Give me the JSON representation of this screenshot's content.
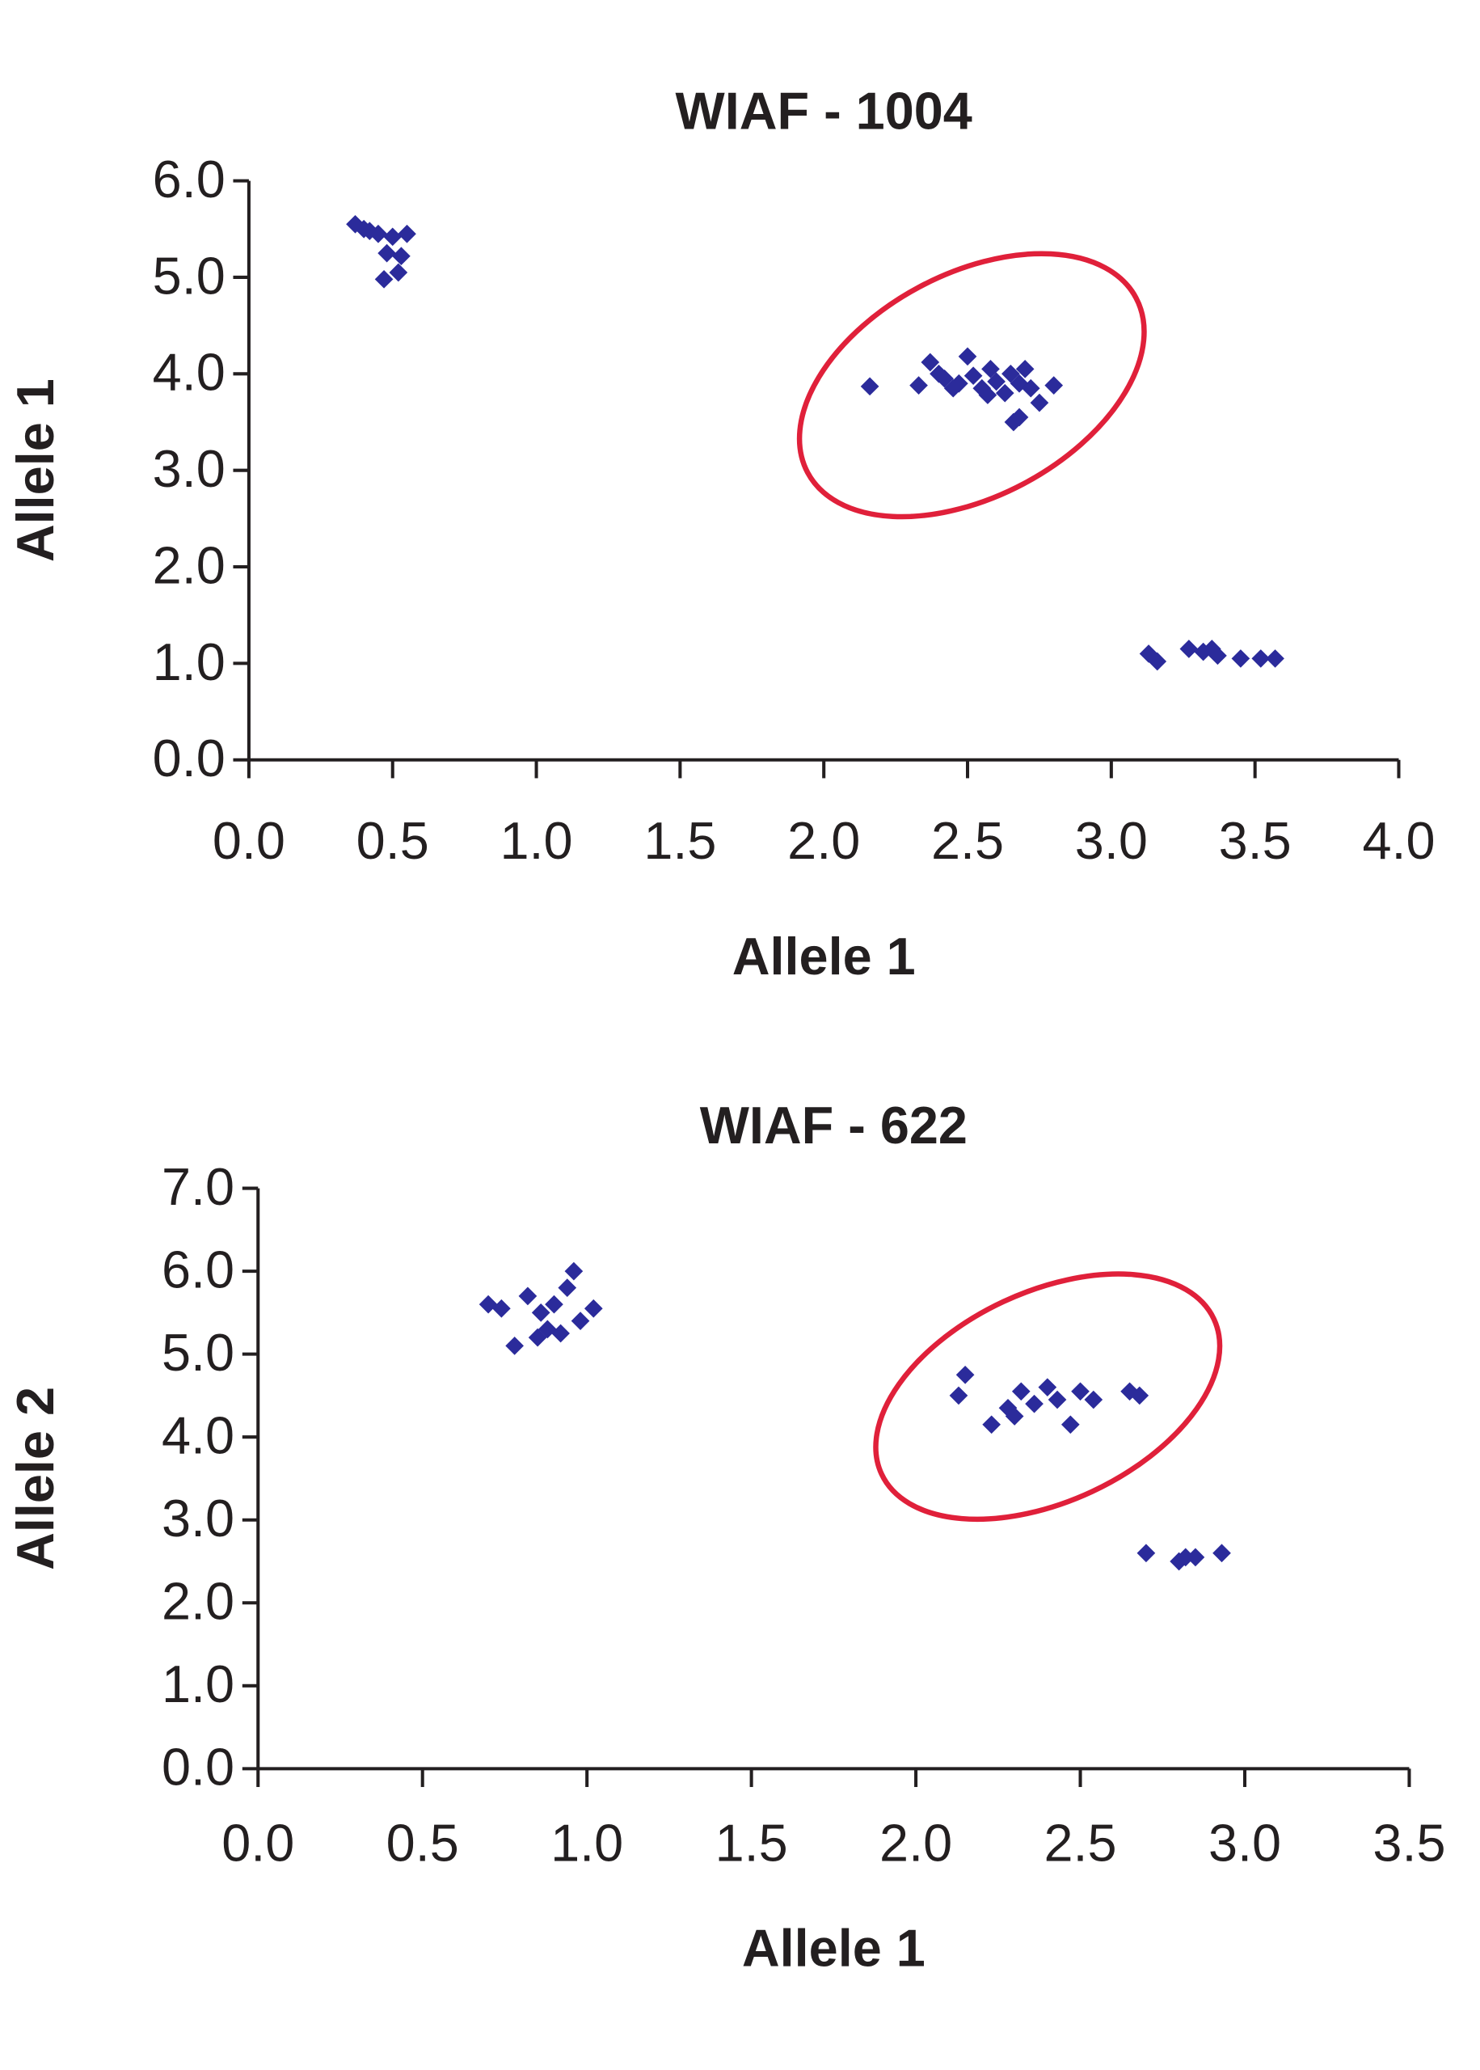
{
  "chart_data": [
    {
      "type": "scatter",
      "title": "WIAF - 1004",
      "x_label": "Allele 1",
      "y_label": "Allele 1",
      "color": "#2b2b9b",
      "x": [
        0.37,
        0.42,
        0.45,
        0.5,
        0.55,
        0.48,
        0.53,
        0.52,
        0.47,
        0.4,
        2.16,
        2.33,
        2.37,
        2.42,
        2.45,
        2.5,
        2.52,
        2.55,
        2.58,
        2.6,
        2.63,
        2.65,
        2.68,
        2.7,
        2.72,
        2.75,
        2.8,
        2.66,
        2.68,
        2.47,
        2.4,
        2.57,
        3.13,
        3.16,
        3.27,
        3.32,
        3.37,
        3.45,
        3.52,
        3.57,
        3.35
      ],
      "values": [
        5.55,
        5.48,
        5.45,
        5.42,
        5.45,
        5.25,
        5.22,
        5.05,
        4.98,
        5.5,
        3.87,
        3.88,
        4.12,
        3.95,
        3.85,
        4.18,
        3.98,
        3.85,
        4.05,
        3.92,
        3.8,
        4.0,
        3.9,
        4.05,
        3.85,
        3.7,
        3.88,
        3.5,
        3.55,
        3.9,
        4.0,
        3.78,
        1.1,
        1.02,
        1.15,
        1.12,
        1.08,
        1.05,
        1.05,
        1.05,
        1.15
      ],
      "xlim": [
        0,
        4
      ],
      "ylim": [
        0,
        6
      ],
      "xticks": [
        {
          "value": 0,
          "label": "0.0"
        },
        {
          "value": 0.5,
          "label": "0.5"
        },
        {
          "value": 1,
          "label": "1.0"
        },
        {
          "value": 1.5,
          "label": "1.5"
        },
        {
          "value": 2,
          "label": "2.0"
        },
        {
          "value": 2.5,
          "label": "2.5"
        },
        {
          "value": 3,
          "label": "3.0"
        },
        {
          "value": 3.5,
          "label": "3.5"
        },
        {
          "value": 4,
          "label": "4.0"
        }
      ],
      "yticks": [
        {
          "value": 0,
          "label": "0.0"
        },
        {
          "value": 1,
          "label": "1.0"
        },
        {
          "value": 2,
          "label": "2.0"
        },
        {
          "value": 3,
          "label": "3.0"
        },
        {
          "value": 4,
          "label": "4.0"
        },
        {
          "value": 5,
          "label": "5.0"
        },
        {
          "value": 6,
          "label": "6.0"
        }
      ]
    },
    {
      "type": "scatter",
      "title": "WIAF - 622",
      "x_label": "Allele 1",
      "y_label": "Allele 2",
      "color": "#2b2b9b",
      "x": [
        0.7,
        0.74,
        0.78,
        0.82,
        0.86,
        0.88,
        0.9,
        0.92,
        0.94,
        0.96,
        0.98,
        1.02,
        0.85,
        2.13,
        2.15,
        2.23,
        2.28,
        2.32,
        2.36,
        2.4,
        2.43,
        2.47,
        2.5,
        2.54,
        2.65,
        2.68,
        2.3,
        2.7,
        2.8,
        2.82,
        2.85,
        2.93
      ],
      "values": [
        5.6,
        5.55,
        5.1,
        5.7,
        5.5,
        5.3,
        5.6,
        5.25,
        5.8,
        6.0,
        5.4,
        5.55,
        5.2,
        4.5,
        4.75,
        4.15,
        4.35,
        4.55,
        4.4,
        4.6,
        4.45,
        4.15,
        4.55,
        4.45,
        4.55,
        4.5,
        4.25,
        2.6,
        2.5,
        2.55,
        2.55,
        2.6
      ],
      "xlim": [
        0,
        3.5
      ],
      "ylim": [
        0,
        7
      ],
      "xticks": [
        {
          "value": 0,
          "label": "0.0"
        },
        {
          "value": 0.5,
          "label": "0.5"
        },
        {
          "value": 1,
          "label": "1.0"
        },
        {
          "value": 1.5,
          "label": "1.5"
        },
        {
          "value": 2,
          "label": "2.0"
        },
        {
          "value": 2.5,
          "label": "2.5"
        },
        {
          "value": 3,
          "label": "3.0"
        },
        {
          "value": 3.5,
          "label": "3.5"
        }
      ],
      "yticks": [
        {
          "value": 0,
          "label": "0.0"
        },
        {
          "value": 1,
          "label": "1.0"
        },
        {
          "value": 2,
          "label": "2.0"
        },
        {
          "value": 3,
          "label": "3.0"
        },
        {
          "value": 4,
          "label": "4.0"
        },
        {
          "value": 5,
          "label": "5.0"
        },
        {
          "value": 6,
          "label": "6.0"
        },
        {
          "value": 7,
          "label": "7.0"
        }
      ]
    }
  ]
}
